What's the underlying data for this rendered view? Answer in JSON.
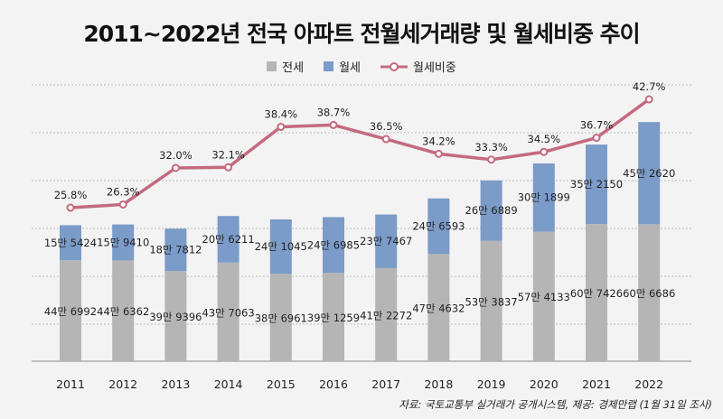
{
  "chart_data": {
    "type": "bar",
    "title": "2011~2022년 전국 아파트 전월세거래량 및 월세비중 추이",
    "categories": [
      "2011",
      "2012",
      "2013",
      "2014",
      "2015",
      "2016",
      "2017",
      "2018",
      "2019",
      "2020",
      "2021",
      "2022"
    ],
    "series": [
      {
        "name": "전세",
        "type": "stacked-bar",
        "color": "#b5b5b5",
        "values": [
          446992,
          446362,
          399396,
          437063,
          386961,
          391259,
          412272,
          474632,
          533837,
          574133,
          607426,
          606686
        ],
        "labels": [
          "44만 6992",
          "44만 6362",
          "39만 9396",
          "43만 7063",
          "38만 6961",
          "39만 1259",
          "41만 2272",
          "47만 4632",
          "53만 3837",
          "57만 4133",
          "60만 7426",
          "60만 6686"
        ]
      },
      {
        "name": "월세",
        "type": "stacked-bar",
        "color": "#7b9bc8",
        "values": [
          155424,
          159410,
          187812,
          206211,
          241045,
          246985,
          237467,
          246593,
          266889,
          301899,
          352150,
          452620
        ],
        "labels": [
          "15만 5424",
          "15만 9410",
          "18만 7812",
          "20만 6211",
          "24만 1045",
          "24만 6985",
          "23만 7467",
          "24만 6593",
          "26만 6889",
          "30만 1899",
          "35만 2150",
          "45만 2620"
        ]
      },
      {
        "name": "월세비중",
        "type": "line",
        "color": "#c46a7e",
        "unit": "%",
        "values": [
          25.8,
          26.3,
          32.0,
          32.1,
          38.4,
          38.7,
          36.5,
          34.2,
          33.3,
          34.5,
          36.7,
          42.7
        ]
      }
    ],
    "grid": true,
    "legend_position": "top-center"
  },
  "source": "자료: 국토교통부 실거래가 공개시스템, 제공: 경제만랩 (1월 31일 조사)"
}
